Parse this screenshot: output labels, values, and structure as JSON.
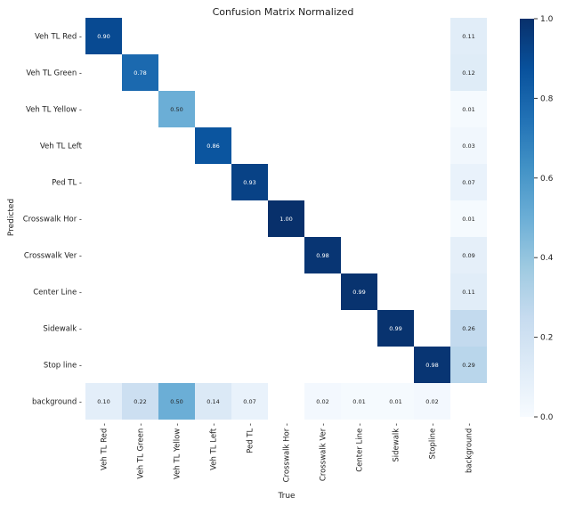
{
  "chart_data": {
    "type": "heatmap",
    "title": "Confusion Matrix Normalized",
    "xlabel": "True",
    "ylabel": "Predicted",
    "columns": [
      "Veh TL Red",
      "Veh TL Green",
      "Veh TL Yellow",
      "Veh TL Left",
      "Ped TL",
      "Crosswalk Hor",
      "Crosswalk Ver",
      "Center Line",
      "Sidewalk",
      "Stopline",
      "background"
    ],
    "rows": [
      "Veh TL Red",
      "Veh TL Green",
      "Veh TL Yellow",
      "Veh TL Left",
      "Ped TL",
      "Crosswalk Hor",
      "Crosswalk Ver",
      "Center Line",
      "Sidewalk",
      "Stop line",
      "background"
    ],
    "row_tick_texts": [
      "Veh TL Red -",
      "Veh TL Green -",
      "Veh TL Yellow -",
      "Veh TL Left",
      "Ped TL -",
      "Crosswalk Hor -",
      "Crosswalk Ver -",
      "Center Line -",
      "Sidewalk -",
      "Stop line -",
      "background -"
    ],
    "values": [
      [
        0.9,
        null,
        null,
        null,
        null,
        null,
        null,
        null,
        null,
        null,
        0.11
      ],
      [
        null,
        0.78,
        null,
        null,
        null,
        null,
        null,
        null,
        null,
        null,
        0.12
      ],
      [
        null,
        null,
        0.5,
        null,
        null,
        null,
        null,
        null,
        null,
        null,
        0.01
      ],
      [
        null,
        null,
        null,
        0.86,
        null,
        null,
        null,
        null,
        null,
        null,
        0.03
      ],
      [
        null,
        null,
        null,
        null,
        0.93,
        null,
        null,
        null,
        null,
        null,
        0.07
      ],
      [
        null,
        null,
        null,
        null,
        null,
        1.0,
        null,
        null,
        null,
        null,
        0.01
      ],
      [
        null,
        null,
        null,
        null,
        null,
        null,
        0.98,
        null,
        null,
        null,
        0.09
      ],
      [
        null,
        null,
        null,
        null,
        null,
        null,
        null,
        0.99,
        null,
        null,
        0.11
      ],
      [
        null,
        null,
        null,
        null,
        null,
        null,
        null,
        null,
        0.99,
        null,
        0.26
      ],
      [
        null,
        null,
        null,
        null,
        null,
        null,
        null,
        null,
        null,
        0.98,
        0.29
      ],
      [
        0.1,
        0.22,
        0.5,
        0.14,
        0.07,
        null,
        0.02,
        0.01,
        0.01,
        0.02,
        null
      ]
    ],
    "colorbar": {
      "colormap": "Blues",
      "range": [
        0.0,
        1.0
      ],
      "ticks": [
        "0.0",
        "0.2",
        "0.4",
        "0.6",
        "0.8",
        "1.0"
      ]
    }
  }
}
